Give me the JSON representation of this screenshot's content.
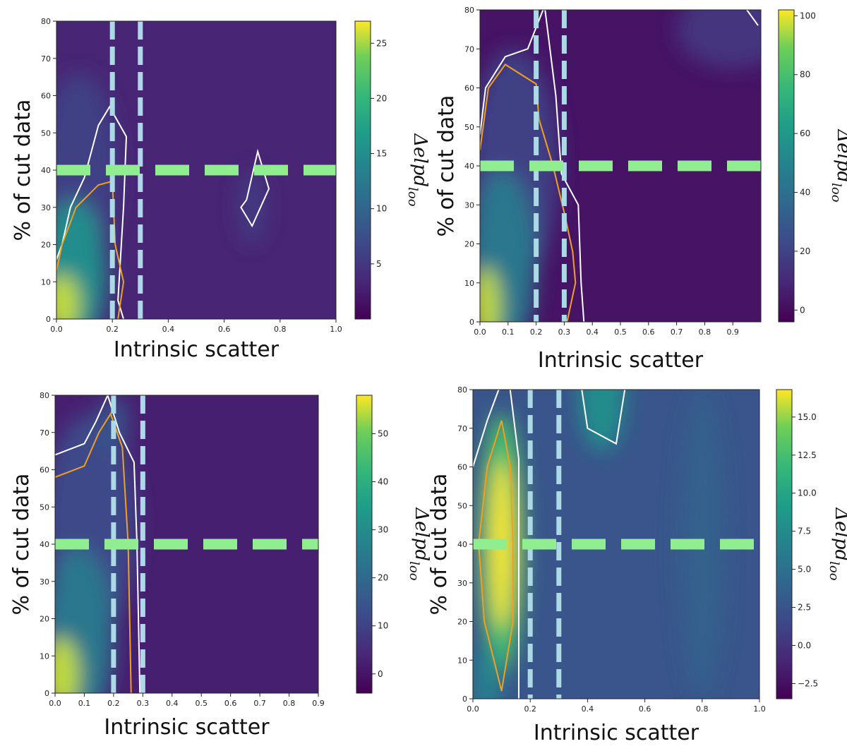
{
  "chart_data": [
    {
      "type": "heatmap",
      "xlabel": "Intrinsic scatter",
      "ylabel": "% of cut data",
      "colorbar_label": "Δelpd",
      "colorbar_subscript": "loo",
      "xlim": [
        0.0,
        1.0
      ],
      "ylim": [
        0,
        80
      ],
      "xticks": [
        "0.0",
        "0.2",
        "0.4",
        "0.6",
        "0.8",
        "1.0"
      ],
      "yticks": [
        "0",
        "10",
        "20",
        "30",
        "40",
        "50",
        "60",
        "70",
        "80"
      ],
      "colorbar_range": [
        0,
        27
      ],
      "colorbar_ticks": [
        "5",
        "10",
        "15",
        "20",
        "25"
      ],
      "vlines_x": [
        0.2,
        0.3
      ],
      "hline_y": 40,
      "peak": {
        "x": 0.0,
        "y": 0,
        "value": 27
      }
    },
    {
      "type": "heatmap",
      "xlabel": "Intrinsic scatter",
      "ylabel": "% of cut data",
      "colorbar_label": "Δelpd",
      "colorbar_subscript": "loo",
      "xlim": [
        0.0,
        1.0
      ],
      "ylim": [
        0,
        80
      ],
      "xticks": [
        "0.0",
        "0.1",
        "0.2",
        "0.3",
        "0.4",
        "0.5",
        "0.6",
        "0.7",
        "0.8",
        "0.9"
      ],
      "yticks": [
        "0",
        "10",
        "20",
        "30",
        "40",
        "50",
        "60",
        "70",
        "80"
      ],
      "colorbar_range": [
        -4,
        102
      ],
      "colorbar_ticks": [
        "0",
        "20",
        "40",
        "60",
        "80",
        "100"
      ],
      "vlines_x": [
        0.2,
        0.3
      ],
      "hline_y": 40,
      "peak": {
        "x": 0.0,
        "y": 0,
        "value": 102
      }
    },
    {
      "type": "heatmap",
      "xlabel": "Intrinsic scatter",
      "ylabel": "% of cut data",
      "colorbar_label": "Δelpd",
      "colorbar_subscript": "loo",
      "xlim": [
        0.0,
        0.9
      ],
      "ylim": [
        0,
        80
      ],
      "xticks": [
        "0.0",
        "0.1",
        "0.2",
        "0.3",
        "0.4",
        "0.5",
        "0.6",
        "0.7",
        "0.8",
        "0.9"
      ],
      "yticks": [
        "0",
        "10",
        "20",
        "30",
        "40",
        "50",
        "60",
        "70",
        "80"
      ],
      "colorbar_range": [
        -4,
        58
      ],
      "colorbar_ticks": [
        "0",
        "10",
        "20",
        "30",
        "40",
        "50"
      ],
      "vlines_x": [
        0.2,
        0.3
      ],
      "hline_y": 40,
      "peak": {
        "x": 0.0,
        "y": 0,
        "value": 58
      }
    },
    {
      "type": "heatmap",
      "xlabel": "Intrinsic scatter",
      "ylabel": "% of cut data",
      "colorbar_label": "Δelpd",
      "colorbar_subscript": "loo",
      "xlim": [
        0.0,
        1.0
      ],
      "ylim": [
        0,
        80
      ],
      "xticks": [
        "0.0",
        "0.2",
        "0.4",
        "0.6",
        "0.8",
        "1.0"
      ],
      "yticks": [
        "0",
        "10",
        "20",
        "30",
        "40",
        "50",
        "60",
        "70",
        "80"
      ],
      "colorbar_range": [
        -3.5,
        16.8
      ],
      "colorbar_ticks": [
        "−2.5",
        "0.0",
        "2.5",
        "5.0",
        "7.5",
        "10.0",
        "12.5",
        "15.0"
      ],
      "vlines_x": [
        0.2,
        0.3
      ],
      "hline_y": 40,
      "peak": {
        "x": 0.1,
        "y": 40,
        "value": 16.8
      }
    }
  ],
  "colors": {
    "hline": "#90ee90",
    "vline": "#add8e6",
    "contour_outer": "#ffffff",
    "contour_inner": "#f0a020",
    "colormap": "viridis"
  }
}
